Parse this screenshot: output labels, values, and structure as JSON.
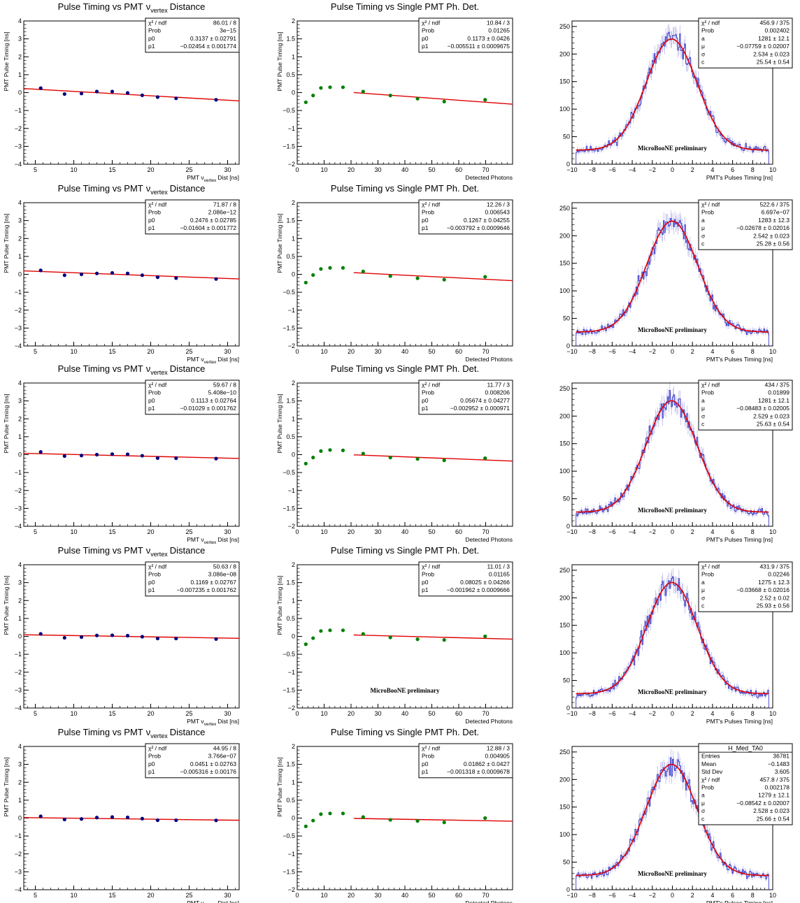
{
  "chart_data": [
    {
      "row": 0,
      "type": "scatter",
      "title": "Pulse Timing vs PMT",
      "title_sub": "vertex",
      "title_tail": "Distance",
      "xlabel_pre": "PMT",
      "xlabel_sub": "vertex",
      "xlabel_tail": "Dist [ns]",
      "ylabel": "PMT Pulse Timing [ns]",
      "xlim": [
        3.5,
        31.5
      ],
      "ylim": [
        -4,
        4
      ],
      "xticks": [
        5,
        10,
        15,
        20,
        25,
        30
      ],
      "yticks": [
        -4,
        -3,
        -2,
        -1,
        0,
        1,
        2,
        3,
        4
      ],
      "marker_color": "#00007f",
      "fit": {
        "p0": 0.3137,
        "p1": -0.02454,
        "x0": 3.5,
        "x1": 31.5
      },
      "x": [
        5.7,
        8.8,
        11.0,
        13.0,
        15.0,
        17.0,
        18.9,
        20.9,
        23.3,
        28.5
      ],
      "y": [
        0.25,
        -0.08,
        -0.05,
        0.06,
        0.06,
        -0.02,
        -0.15,
        -0.25,
        -0.32,
        -0.4
      ],
      "stats": [
        [
          "χ² / ndf",
          "86.01 / 8"
        ],
        [
          "Prob",
          "3e−15"
        ],
        [
          "p0",
          "0.3137 ± 0.02791"
        ],
        [
          "p1",
          "−0.02454 ± 0.001774"
        ]
      ]
    },
    {
      "row": 0,
      "type": "scatter",
      "title": "Pulse Timing vs Single PMT Ph. Det.",
      "xlabel": "Detected Photons",
      "ylabel": "PMT Pulse Timing [ns]",
      "xlim": [
        0,
        80
      ],
      "ylim": [
        -2,
        2
      ],
      "xticks": [
        0,
        10,
        20,
        30,
        40,
        50,
        60,
        70
      ],
      "yticks": [
        -2,
        -1.5,
        -1,
        -0.5,
        0,
        0.5,
        1,
        1.5,
        2
      ],
      "marker_color": "#008000",
      "fit": {
        "p0": 0.1173,
        "p1": -0.005511,
        "x0": 21,
        "x1": 80
      },
      "x": [
        3.2,
        5.9,
        8.8,
        12.2,
        17.0,
        24.5,
        34.6,
        44.7,
        54.6,
        69.8
      ],
      "y": [
        -0.27,
        -0.08,
        0.13,
        0.15,
        0.15,
        0.03,
        -0.08,
        -0.17,
        -0.25,
        -0.2
      ],
      "stats": [
        [
          "χ² / ndf",
          "10.84 / 3"
        ],
        [
          "Prob",
          "0.01265"
        ],
        [
          "p0",
          "0.1173 ± 0.0426"
        ],
        [
          "p1",
          "−0.005511 ± 0.0009675"
        ]
      ]
    },
    {
      "row": 0,
      "type": "histogram",
      "title": "",
      "xlabel": "PMT's Pulses Timing [ns]",
      "ylabel": "",
      "annotation": "MicroBooNE preliminary",
      "xlim": [
        -10,
        10
      ],
      "ylim": [
        0,
        260
      ],
      "xticks": [
        -10,
        -8,
        -6,
        -4,
        -2,
        0,
        2,
        4,
        6,
        8,
        10
      ],
      "yticks": [
        0,
        50,
        100,
        150,
        200,
        250
      ],
      "fit": {
        "a": 1281,
        "mu": -0.07759,
        "sigma": 2.534,
        "c": 25.54
      },
      "seed": 11,
      "stats": [
        [
          "χ² / ndf",
          "456.9 / 375"
        ],
        [
          "Prob",
          "0.002402"
        ],
        [
          "a",
          "1281 ± 12.1"
        ],
        [
          "μ",
          "−0.07759 ± 0.02007"
        ],
        [
          "σ",
          "2.534 ± 0.023"
        ],
        [
          "c",
          "25.54 ± 0.54"
        ]
      ]
    },
    {
      "row": 1,
      "type": "scatter",
      "title": "Pulse Timing vs PMT",
      "title_sub": "vertex",
      "title_tail": "Distance",
      "xlabel_pre": "PMT",
      "xlabel_sub": "vertex",
      "xlabel_tail": "Dist [ns]",
      "ylabel": "PMT Pulse Timing [ns]",
      "xlim": [
        3.5,
        31.5
      ],
      "ylim": [
        -4,
        4
      ],
      "xticks": [
        5,
        10,
        15,
        20,
        25,
        30
      ],
      "yticks": [
        -4,
        -3,
        -2,
        -1,
        0,
        1,
        2,
        3,
        4
      ],
      "marker_color": "#00007f",
      "fit": {
        "p0": 0.2476,
        "p1": -0.01604,
        "x0": 3.5,
        "x1": 31.5
      },
      "x": [
        5.7,
        8.8,
        11.0,
        13.0,
        15.0,
        17.0,
        18.9,
        20.9,
        23.3,
        28.5
      ],
      "y": [
        0.22,
        -0.05,
        0.0,
        0.05,
        0.08,
        0.05,
        -0.05,
        -0.16,
        -0.21,
        -0.26
      ],
      "stats": [
        [
          "χ² / ndf",
          "71.87 / 8"
        ],
        [
          "Prob",
          "2.086e−12"
        ],
        [
          "p0",
          "0.2476 ± 0.02785"
        ],
        [
          "p1",
          "−0.01604 ± 0.001772"
        ]
      ]
    },
    {
      "row": 1,
      "type": "scatter",
      "title": "Pulse Timing vs Single PMT Ph. Det.",
      "xlabel": "Detected Photons",
      "ylabel": "PMT Pulse Timing [ns]",
      "xlim": [
        0,
        80
      ],
      "ylim": [
        -2,
        2
      ],
      "xticks": [
        0,
        10,
        20,
        30,
        40,
        50,
        60,
        70
      ],
      "yticks": [
        -2,
        -1.5,
        -1,
        -0.5,
        0,
        0.5,
        1,
        1.5,
        2
      ],
      "marker_color": "#008000",
      "fit": {
        "p0": 0.1267,
        "p1": -0.003792,
        "x0": 21,
        "x1": 80
      },
      "x": [
        3.2,
        5.9,
        8.8,
        12.2,
        17.0,
        24.5,
        34.6,
        44.7,
        54.6,
        69.8
      ],
      "y": [
        -0.23,
        -0.02,
        0.15,
        0.18,
        0.18,
        0.08,
        -0.05,
        -0.11,
        -0.15,
        -0.07
      ],
      "stats": [
        [
          "χ² / ndf",
          "12.26 / 3"
        ],
        [
          "Prob",
          "0.006543"
        ],
        [
          "p0",
          "0.1267 ± 0.04255"
        ],
        [
          "p1",
          "−0.003792 ± 0.0009646"
        ]
      ]
    },
    {
      "row": 1,
      "type": "histogram",
      "title": "",
      "xlabel": "PMT's Pulses Timing [ns]",
      "ylabel": "",
      "annotation": "MicroBooNE preliminary",
      "xlim": [
        -10,
        10
      ],
      "ylim": [
        0,
        260
      ],
      "xticks": [
        -10,
        -8,
        -6,
        -4,
        -2,
        0,
        2,
        4,
        6,
        8,
        10
      ],
      "yticks": [
        0,
        50,
        100,
        150,
        200,
        250
      ],
      "fit": {
        "a": 1283,
        "mu": -0.02678,
        "sigma": 2.542,
        "c": 25.28
      },
      "seed": 23,
      "stats": [
        [
          "χ² / ndf",
          "522.6 / 375"
        ],
        [
          "Prob",
          "6.697e−07"
        ],
        [
          "a",
          "1283 ± 12.3"
        ],
        [
          "μ",
          "−0.02678 ± 0.02016"
        ],
        [
          "σ",
          "2.542 ± 0.023"
        ],
        [
          "c",
          "25.28 ± 0.56"
        ]
      ]
    },
    {
      "row": 2,
      "type": "scatter",
      "title": "Pulse Timing vs PMT",
      "title_sub": "vertex",
      "title_tail": "Distance",
      "xlabel_pre": "PMT",
      "xlabel_sub": "vertex",
      "xlabel_tail": "Dist [ns]",
      "ylabel": "PMT Pulse Timing [ns]",
      "xlim": [
        3.5,
        31.5
      ],
      "ylim": [
        -4,
        4
      ],
      "xticks": [
        5,
        10,
        15,
        20,
        25,
        30
      ],
      "yticks": [
        -4,
        -3,
        -2,
        -1,
        0,
        1,
        2,
        3,
        4
      ],
      "marker_color": "#00007f",
      "fit": {
        "p0": 0.1113,
        "p1": -0.01029,
        "x0": 3.5,
        "x1": 31.5
      },
      "x": [
        5.7,
        8.8,
        11.0,
        13.0,
        15.0,
        17.0,
        18.9,
        20.9,
        23.3,
        28.5
      ],
      "y": [
        0.15,
        -0.08,
        -0.05,
        0.0,
        0.03,
        0.02,
        -0.06,
        -0.19,
        -0.2,
        -0.22
      ],
      "stats": [
        [
          "χ² / ndf",
          "59.67 / 8"
        ],
        [
          "Prob",
          "5.408e−10"
        ],
        [
          "p0",
          "0.1113 ± 0.02764"
        ],
        [
          "p1",
          "−0.01029 ± 0.001762"
        ]
      ]
    },
    {
      "row": 2,
      "type": "scatter",
      "title": "Pulse Timing vs Single PMT Ph. Det.",
      "xlabel": "Detected Photons",
      "ylabel": "PMT Pulse Timing [ns]",
      "xlim": [
        0,
        80
      ],
      "ylim": [
        -2,
        2
      ],
      "xticks": [
        0,
        10,
        20,
        30,
        40,
        50,
        60,
        70
      ],
      "yticks": [
        -2,
        -1.5,
        -1,
        -0.5,
        0,
        0.5,
        1,
        1.5,
        2
      ],
      "marker_color": "#008000",
      "fit": {
        "p0": 0.05674,
        "p1": -0.002952,
        "x0": 21,
        "x1": 80
      },
      "x": [
        3.2,
        5.9,
        8.8,
        12.2,
        17.0,
        24.5,
        34.6,
        44.7,
        54.6,
        69.8
      ],
      "y": [
        -0.25,
        -0.08,
        0.1,
        0.13,
        0.12,
        0.03,
        -0.08,
        -0.12,
        -0.16,
        -0.1
      ],
      "stats": [
        [
          "χ² / ndf",
          "11.77 / 3"
        ],
        [
          "Prob",
          "0.008206"
        ],
        [
          "p0",
          "0.05674 ± 0.04277"
        ],
        [
          "p1",
          "−0.002952 ± 0.000971"
        ]
      ]
    },
    {
      "row": 2,
      "type": "histogram",
      "title": "",
      "xlabel": "PMT's Pulses Timing [ns]",
      "ylabel": "",
      "annotation": "MicroBooNE preliminary",
      "xlim": [
        -10,
        10
      ],
      "ylim": [
        0,
        260
      ],
      "xticks": [
        -10,
        -8,
        -6,
        -4,
        -2,
        0,
        2,
        4,
        6,
        8,
        10
      ],
      "yticks": [
        0,
        50,
        100,
        150,
        200,
        250
      ],
      "fit": {
        "a": 1281,
        "mu": -0.08483,
        "sigma": 2.529,
        "c": 25.63
      },
      "seed": 37,
      "stats": [
        [
          "χ² / ndf",
          "434 / 375"
        ],
        [
          "Prob",
          "0.01899"
        ],
        [
          "a",
          "1281 ± 12.1"
        ],
        [
          "μ",
          "−0.08483 ± 0.02005"
        ],
        [
          "σ",
          "2.529 ± 0.023"
        ],
        [
          "c",
          "25.63 ± 0.54"
        ]
      ]
    },
    {
      "row": 3,
      "type": "scatter",
      "title": "Pulse Timing vs PMT",
      "title_sub": "vertex",
      "title_tail": "Distance",
      "xlabel_pre": "PMT",
      "xlabel_sub": "vertex",
      "xlabel_tail": "Dist [ns]",
      "ylabel": "PMT Pulse Timing [ns]",
      "xlim": [
        3.5,
        31.5
      ],
      "ylim": [
        -4,
        4
      ],
      "xticks": [
        5,
        10,
        15,
        20,
        25,
        30
      ],
      "yticks": [
        -4,
        -3,
        -2,
        -1,
        0,
        1,
        2,
        3,
        4
      ],
      "marker_color": "#00007f",
      "fit": {
        "p0": 0.1169,
        "p1": -0.007235,
        "x0": 3.5,
        "x1": 31.5
      },
      "x": [
        5.7,
        8.8,
        11.0,
        13.0,
        15.0,
        17.0,
        18.9,
        20.9,
        23.3,
        28.5
      ],
      "y": [
        0.14,
        -0.08,
        -0.04,
        0.05,
        0.06,
        0.04,
        -0.02,
        -0.12,
        -0.12,
        -0.15
      ],
      "stats": [
        [
          "χ² / ndf",
          "50.63 / 8"
        ],
        [
          "Prob",
          "3.086e−08"
        ],
        [
          "p0",
          "0.1169 ± 0.02767"
        ],
        [
          "p1",
          "−0.007235 ± 0.001762"
        ]
      ]
    },
    {
      "row": 3,
      "type": "scatter",
      "title": "Pulse Timing vs Single PMT Ph. Det.",
      "xlabel": "Detected Photons",
      "ylabel": "PMT Pulse Timing [ns]",
      "annotation": "MicroBooNE preliminary",
      "xlim": [
        0,
        80
      ],
      "ylim": [
        -2,
        2
      ],
      "xticks": [
        0,
        10,
        20,
        30,
        40,
        50,
        60,
        70
      ],
      "yticks": [
        -2,
        -1.5,
        -1,
        -0.5,
        0,
        0.5,
        1,
        1.5,
        2
      ],
      "marker_color": "#008000",
      "fit": {
        "p0": 0.08025,
        "p1": -0.001962,
        "x0": 21,
        "x1": 80
      },
      "x": [
        3.2,
        5.9,
        8.8,
        12.2,
        17.0,
        24.5,
        34.6,
        44.7,
        54.6,
        69.8
      ],
      "y": [
        -0.22,
        -0.05,
        0.15,
        0.17,
        0.17,
        0.07,
        -0.03,
        -0.08,
        -0.1,
        0.0
      ],
      "stats": [
        [
          "χ² / ndf",
          "11.01 / 3"
        ],
        [
          "Prob",
          "0.01165"
        ],
        [
          "p0",
          "0.08025 ± 0.04266"
        ],
        [
          "p1",
          "−0.001962 ± 0.0009666"
        ]
      ]
    },
    {
      "row": 3,
      "type": "histogram",
      "title": "",
      "xlabel": "PMT's Pulses Timing [ns]",
      "ylabel": "",
      "annotation": "MicroBooNE preliminary",
      "xlim": [
        -10,
        10
      ],
      "ylim": [
        0,
        260
      ],
      "xticks": [
        -10,
        -8,
        -6,
        -4,
        -2,
        0,
        2,
        4,
        6,
        8,
        10
      ],
      "yticks": [
        0,
        50,
        100,
        150,
        200,
        250
      ],
      "fit": {
        "a": 1275,
        "mu": -0.03668,
        "sigma": 2.52,
        "c": 25.93
      },
      "seed": 53,
      "stats": [
        [
          "χ² / ndf",
          "431.9 / 375"
        ],
        [
          "Prob",
          "0.02246"
        ],
        [
          "a",
          "1275 ± 12.3"
        ],
        [
          "μ",
          "−0.03668 ± 0.02016"
        ],
        [
          "σ",
          "2.52 ± 0.02"
        ],
        [
          "c",
          "25.93 ± 0.56"
        ]
      ]
    },
    {
      "row": 4,
      "type": "scatter",
      "title": "Pulse Timing vs PMT",
      "title_sub": "vertex",
      "title_tail": "Distance",
      "xlabel_pre": "PMT",
      "xlabel_sub": "vertex",
      "xlabel_tail": "Dist [ns]",
      "ylabel": "PMT Pulse Timing [ns]",
      "xlim": [
        3.5,
        31.5
      ],
      "ylim": [
        -4,
        4
      ],
      "xticks": [
        5,
        10,
        15,
        20,
        25,
        30
      ],
      "yticks": [
        -4,
        -3,
        -2,
        -1,
        0,
        1,
        2,
        3,
        4
      ],
      "marker_color": "#00007f",
      "fit": {
        "p0": 0.0451,
        "p1": -0.005316,
        "x0": 3.5,
        "x1": 31.5
      },
      "x": [
        5.7,
        8.8,
        11.0,
        13.0,
        15.0,
        17.0,
        18.9,
        20.9,
        23.3,
        28.5
      ],
      "y": [
        0.1,
        -0.08,
        -0.05,
        0.03,
        0.06,
        0.04,
        -0.03,
        -0.12,
        -0.12,
        -0.13
      ],
      "stats": [
        [
          "χ² / ndf",
          "44.95 / 8"
        ],
        [
          "Prob",
          "3.766e−07"
        ],
        [
          "p0",
          "0.0451 ± 0.02763"
        ],
        [
          "p1",
          "−0.005316 ± 0.00176"
        ]
      ]
    },
    {
      "row": 4,
      "type": "scatter",
      "title": "Pulse Timing vs Single PMT Ph. Det.",
      "xlabel": "Detected Photons",
      "ylabel": "PMT Pulse Timing [ns]",
      "xlim": [
        0,
        80
      ],
      "ylim": [
        -2,
        2
      ],
      "xticks": [
        0,
        10,
        20,
        30,
        40,
        50,
        60,
        70
      ],
      "yticks": [
        -2,
        -1.5,
        -1,
        -0.5,
        0,
        0.5,
        1,
        1.5,
        2
      ],
      "marker_color": "#008000",
      "fit": {
        "p0": 0.01862,
        "p1": -0.001318,
        "x0": 21,
        "x1": 80
      },
      "x": [
        3.2,
        5.9,
        8.8,
        12.2,
        17.0,
        24.5,
        34.6,
        44.7,
        54.6,
        69.8
      ],
      "y": [
        -0.23,
        -0.07,
        0.11,
        0.13,
        0.13,
        0.03,
        -0.05,
        -0.08,
        -0.12,
        0.0
      ],
      "stats": [
        [
          "χ² / ndf",
          "12.88 / 3"
        ],
        [
          "Prob",
          "0.004905"
        ],
        [
          "p0",
          "0.01862 ± 0.0427"
        ],
        [
          "p1",
          "−0.001318 ± 0.0009678"
        ]
      ]
    },
    {
      "row": 4,
      "type": "histogram",
      "title": "",
      "xlabel": "PMT's Pulses Timing [ns]",
      "ylabel": "",
      "annotation": "MicroBooNE preliminary",
      "xlim": [
        -10,
        10
      ],
      "ylim": [
        0,
        260
      ],
      "xticks": [
        -10,
        -8,
        -6,
        -4,
        -2,
        0,
        2,
        4,
        6,
        8,
        10
      ],
      "yticks": [
        0,
        50,
        100,
        150,
        200,
        250
      ],
      "fit": {
        "a": 1279,
        "mu": -0.08542,
        "sigma": 2.528,
        "c": 25.66
      },
      "seed": 71,
      "stats_title": "H_Med_TA0",
      "stats": [
        [
          "Entries",
          "36781"
        ],
        [
          "Mean",
          "−0.1483"
        ],
        [
          "Std Dev",
          "3.605"
        ],
        [
          "χ² / ndf",
          "457.8 / 375"
        ],
        [
          "Prob",
          "0.002178"
        ],
        [
          "a",
          "1279 ± 12.1"
        ],
        [
          "μ",
          "−0.08542 ± 0.02007"
        ],
        [
          "σ",
          "2.528 ± 0.023"
        ],
        [
          "c",
          "25.66 ± 0.54"
        ]
      ]
    }
  ]
}
